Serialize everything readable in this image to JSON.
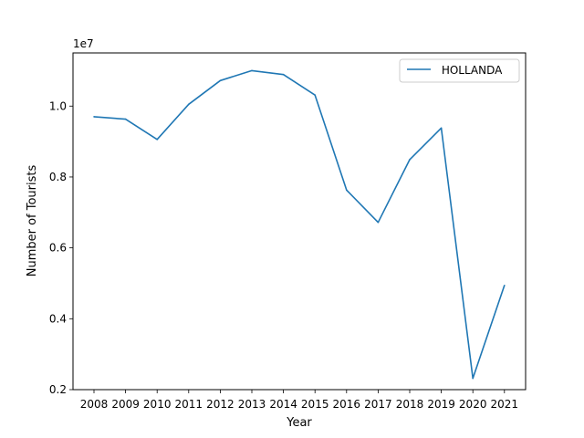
{
  "chart_data": {
    "type": "line",
    "title": "",
    "xlabel": "Year",
    "ylabel": "Number of Tourists",
    "offset_label": "1e7",
    "x": [
      "2008",
      "2009",
      "2010",
      "2011",
      "2012",
      "2013",
      "2014",
      "2015",
      "2016",
      "2017",
      "2018",
      "2019",
      "2020",
      "2021"
    ],
    "series": [
      {
        "name": " HOLLANDA",
        "color": "#1f77b4",
        "values": [
          9700000,
          9630000,
          9060000,
          10050000,
          10720000,
          11000000,
          10890000,
          10310000,
          7630000,
          6720000,
          8490000,
          9380000,
          2320000,
          4940000
        ]
      }
    ],
    "ylim": [
      2000000,
      11500000
    ],
    "yticks": [
      0.2,
      0.4,
      0.6,
      0.8,
      1.0
    ],
    "ytick_labels": [
      "0.2",
      "0.4",
      "0.6",
      "0.8",
      "1.0"
    ],
    "grid": false,
    "legend_position": "top-right"
  }
}
